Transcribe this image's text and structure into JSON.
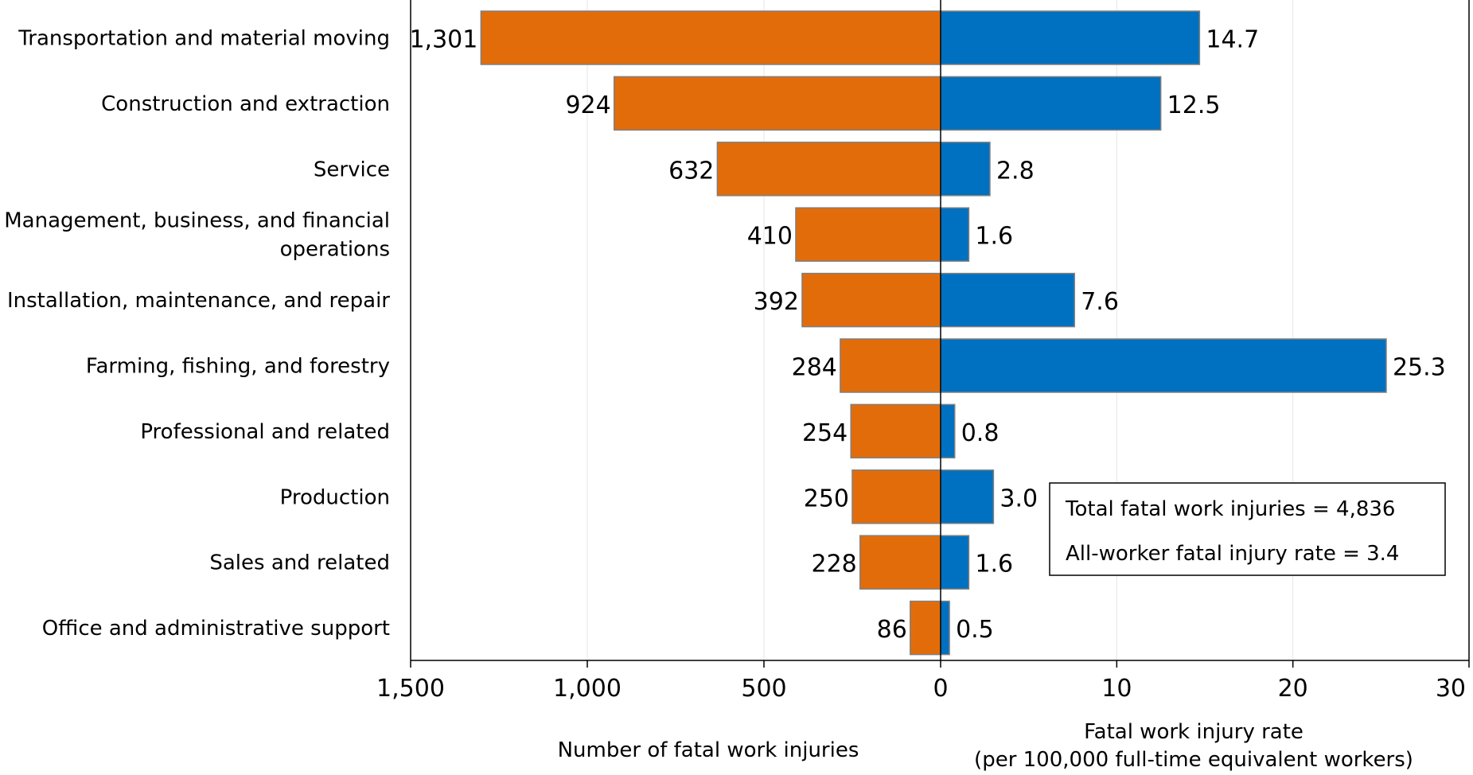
{
  "chart_data": {
    "type": "bar",
    "orientation": "horizontal",
    "layout": "butterfly",
    "categories": [
      [
        "Transportation and material moving"
      ],
      [
        "Construction and extraction"
      ],
      [
        "Service"
      ],
      [
        "Management, business, and financial",
        "operations"
      ],
      [
        "Installation, maintenance, and repair"
      ],
      [
        "Farming, fishing, and forestry"
      ],
      [
        "Professional and related"
      ],
      [
        "Production"
      ],
      [
        "Sales and related"
      ],
      [
        "Office and administrative support"
      ]
    ],
    "left_panel": {
      "xlabel": "Number of fatal work injuries",
      "xlim": [
        0,
        1500
      ],
      "direction": "reversed",
      "ticks": [
        1500,
        1000,
        500,
        0
      ],
      "tick_labels": [
        "1,500",
        "1,000",
        "500",
        "0"
      ],
      "color": "#E36C0A",
      "values": [
        1301,
        924,
        632,
        410,
        392,
        284,
        254,
        250,
        228,
        86
      ],
      "value_labels": [
        "1,301",
        "924",
        "632",
        "410",
        "392",
        "284",
        "254",
        "250",
        "228",
        "86"
      ]
    },
    "right_panel": {
      "xlabel": [
        "Fatal work injury rate",
        "(per 100,000 full-time equivalent workers)"
      ],
      "xlim": [
        0,
        30
      ],
      "ticks": [
        10,
        20,
        30
      ],
      "tick_labels": [
        "10",
        "20",
        "30"
      ],
      "color": "#0070C0",
      "values": [
        14.7,
        12.5,
        2.8,
        1.6,
        7.6,
        25.3,
        0.8,
        3.0,
        1.6,
        0.5
      ],
      "value_labels": [
        "14.7",
        "12.5",
        "2.8",
        "1.6",
        "7.6",
        "25.3",
        "0.8",
        "3.0",
        "1.6",
        "0.5"
      ]
    },
    "annotation_box": [
      "Total fatal work injuries = 4,836",
      "All-worker fatal injury rate = 3.4"
    ],
    "grid": "vertical"
  }
}
